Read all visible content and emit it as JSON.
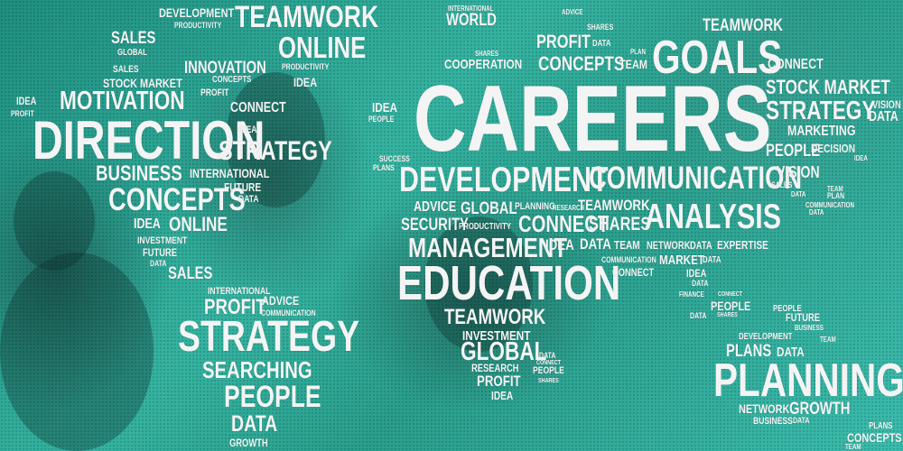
{
  "words": [
    "DEVELOPMENT",
    "PRODUCTIVITY",
    "TEAMWORK",
    "SALES",
    "GLOBAL",
    "ONLINE",
    "PRODUCTIVITY",
    "SALES",
    "STOCK MARKET",
    "INNOVATION",
    "CONCEPTS",
    "IDEA",
    "PROFIT",
    "IDEA",
    "MOTIVATION",
    "CONNECT",
    "PROFIT",
    "DIRECTION",
    "IDEA",
    "STRATEGY",
    "BUSINESS",
    "INTERNATIONAL",
    "CONCEPTS",
    "FUTURE",
    "DATA",
    "IDEA",
    "ONLINE",
    "INVESTMENT",
    "FUTURE",
    "DATA",
    "SALES",
    "INTERNATIONAL",
    "PROFIT",
    "ADVICE",
    "COMMUNICATION",
    "STRATEGY",
    "SEARCHING",
    "PEOPLE",
    "DATA",
    "GROWTH",
    "INTERNATIONAL",
    "WORLD",
    "SHARES",
    "COOPERATION",
    "ADVICE",
    "PROFIT",
    "SHARES",
    "DATA",
    "PLAN",
    "CONCEPTS",
    "TEAM",
    "GOALS",
    "TEAMWORK",
    "CONNECT",
    "CAREERS",
    "IDEA",
    "PEOPLE",
    "SUCCESS",
    "PLANS",
    "DEVELOPMENT",
    "COMMUNICATION",
    "STOCK MARKET",
    "STRATEGY",
    "VISION",
    "DATA",
    "MARKETING",
    "PEOPLE",
    "DECISION",
    "IDEA",
    "VISION",
    "SALES",
    "DATA",
    "TEAM",
    "PLAN",
    "COMMUNICATION",
    "DATA",
    "ADVICE",
    "GLOBAL",
    "PLANNING",
    "RESEARCH",
    "TEAMWORK",
    "SECURITY",
    "PRODUCTIVITY",
    "CONNECT",
    "SHARES",
    "ANALYSIS",
    "MANAGEMENT",
    "IDEA",
    "DATA",
    "TEAM",
    "NETWORK",
    "DATA",
    "EXPERTISE",
    "COMMUNICATION",
    "MARKET",
    "DATA",
    "EDUCATION",
    "CONNECT",
    "IDEA",
    "DATA",
    "FINANCE",
    "CONNECT",
    "PEOPLE",
    "DATA",
    "SHARES",
    "TEAMWORK",
    "INVESTMENT",
    "GLOBAL",
    "RESEARCH",
    "DATA",
    "CONNECT",
    "PROFIT",
    "PEOPLE",
    "SHARES",
    "IDEA",
    "PEOPLE",
    "FUTURE",
    "BUSINESS",
    "DEVELOPMENT",
    "PLANS",
    "DATA",
    "TEAM",
    "PLANNING",
    "NETWORK",
    "GROWTH",
    "BUSINESS",
    "DATA",
    "PLANS",
    "CONCEPTS",
    "TEAM"
  ]
}
